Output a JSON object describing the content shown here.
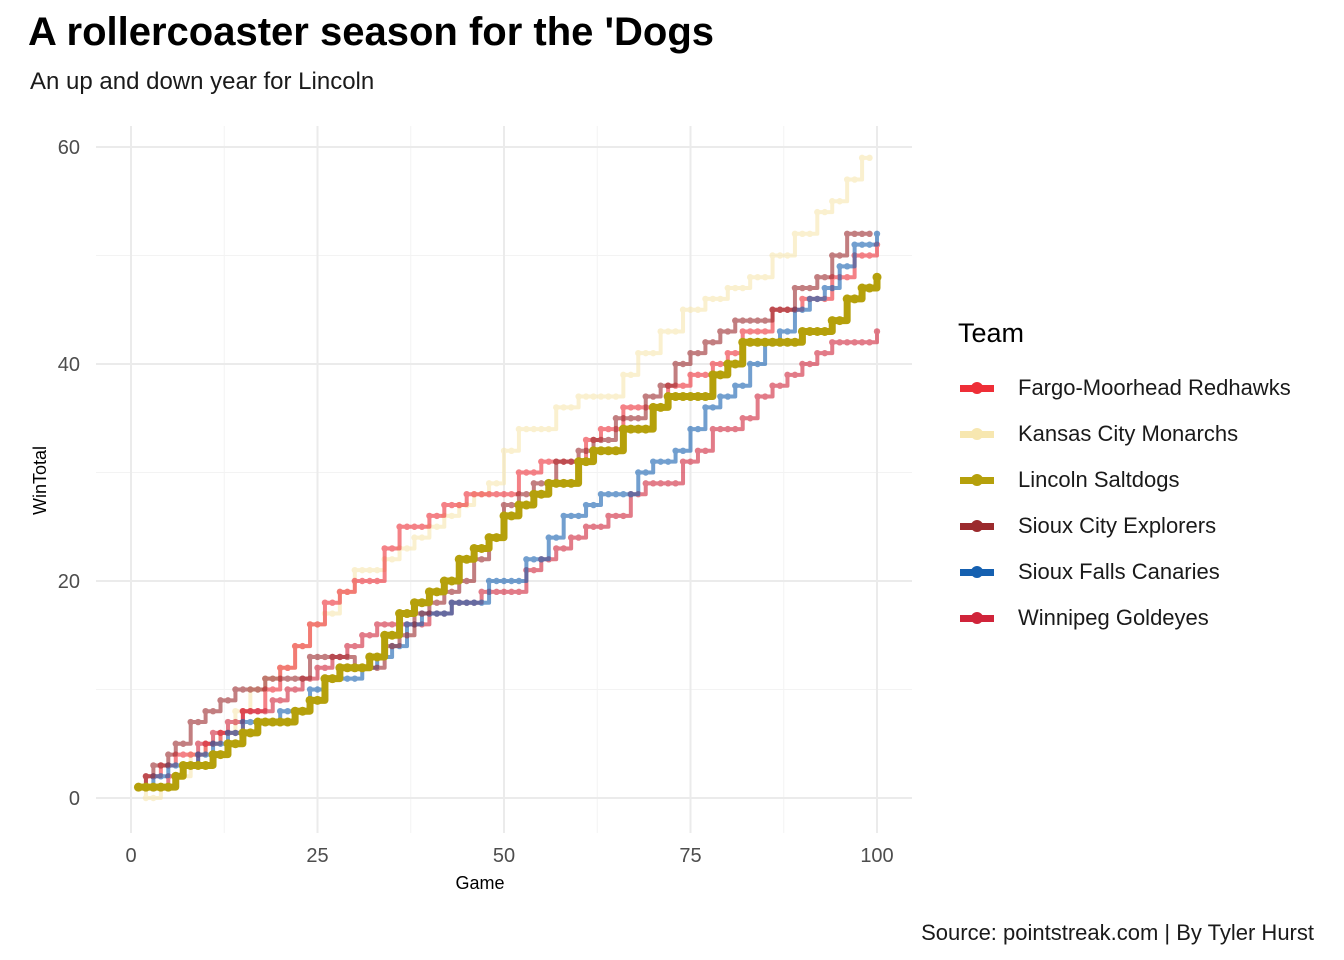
{
  "title": "A rollercoaster season for the 'Dogs",
  "subtitle": "An up and down year for Lincoln",
  "caption": "Source: pointstreak.com | By Tyler Hurst",
  "legend": {
    "title": "Team",
    "items": [
      {
        "label": "Fargo-Moorhead Redhawks",
        "color": "#EE2E37"
      },
      {
        "label": "Kansas City Monarchs",
        "color": "#F7E7B0"
      },
      {
        "label": "Lincoln Saltdogs",
        "color": "#B5A00B"
      },
      {
        "label": "Sioux City Explorers",
        "color": "#9B2A2D"
      },
      {
        "label": "Sioux Falls Canaries",
        "color": "#1560B0"
      },
      {
        "label": "Winnipeg Goldeyes",
        "color": "#D0243A"
      }
    ]
  },
  "chart_data": {
    "type": "line",
    "xlabel": "Game",
    "ylabel": "WinTotal",
    "xlim": [
      0,
      100
    ],
    "ylim": [
      0,
      60
    ],
    "x_ticks": [
      0,
      25,
      50,
      75,
      100
    ],
    "y_ticks": [
      0,
      20,
      40,
      60
    ],
    "grid": true,
    "legend_position": "right",
    "series": [
      {
        "name": "Fargo-Moorhead Redhawks",
        "color": "#EE2E37",
        "points": [
          [
            1,
            1
          ],
          [
            2,
            2
          ],
          [
            3,
            2
          ],
          [
            4,
            3
          ],
          [
            5,
            3
          ],
          [
            6,
            4
          ],
          [
            8,
            4
          ],
          [
            10,
            5
          ],
          [
            12,
            6
          ],
          [
            15,
            8
          ],
          [
            18,
            10
          ],
          [
            20,
            12
          ],
          [
            22,
            14
          ],
          [
            24,
            16
          ],
          [
            26,
            18
          ],
          [
            28,
            19
          ],
          [
            30,
            20
          ],
          [
            32,
            20
          ],
          [
            34,
            23
          ],
          [
            36,
            25
          ],
          [
            38,
            25
          ],
          [
            40,
            26
          ],
          [
            42,
            27
          ],
          [
            45,
            28
          ],
          [
            49,
            28
          ],
          [
            52,
            30
          ],
          [
            55,
            31
          ],
          [
            58,
            31
          ],
          [
            61,
            33
          ],
          [
            63,
            34
          ],
          [
            66,
            36
          ],
          [
            70,
            36
          ],
          [
            72,
            38
          ],
          [
            75,
            39
          ],
          [
            78,
            40
          ],
          [
            80,
            41
          ],
          [
            82,
            43
          ],
          [
            86,
            45
          ],
          [
            90,
            46
          ],
          [
            94,
            48
          ],
          [
            97,
            50
          ],
          [
            100,
            51
          ]
        ]
      },
      {
        "name": "Kansas City Monarchs",
        "color": "#F7E7B0",
        "points": [
          [
            1,
            1
          ],
          [
            2,
            0
          ],
          [
            3,
            0
          ],
          [
            4,
            1
          ],
          [
            6,
            2
          ],
          [
            8,
            4
          ],
          [
            10,
            5
          ],
          [
            12,
            6
          ],
          [
            14,
            8
          ],
          [
            16,
            10
          ],
          [
            18,
            11
          ],
          [
            20,
            12
          ],
          [
            22,
            14
          ],
          [
            24,
            16
          ],
          [
            26,
            17
          ],
          [
            28,
            19
          ],
          [
            30,
            21
          ],
          [
            32,
            21
          ],
          [
            34,
            22
          ],
          [
            36,
            23
          ],
          [
            38,
            24
          ],
          [
            40,
            25
          ],
          [
            42,
            26
          ],
          [
            44,
            27
          ],
          [
            46,
            28
          ],
          [
            48,
            29
          ],
          [
            50,
            32
          ],
          [
            52,
            34
          ],
          [
            55,
            34
          ],
          [
            57,
            36
          ],
          [
            60,
            37
          ],
          [
            64,
            37
          ],
          [
            66,
            39
          ],
          [
            68,
            41
          ],
          [
            71,
            43
          ],
          [
            74,
            45
          ],
          [
            77,
            46
          ],
          [
            80,
            47
          ],
          [
            83,
            48
          ],
          [
            86,
            50
          ],
          [
            89,
            52
          ],
          [
            92,
            54
          ],
          [
            94,
            55
          ],
          [
            96,
            57
          ],
          [
            98,
            59
          ],
          [
            99,
            59
          ]
        ]
      },
      {
        "name": "Lincoln Saltdogs",
        "color": "#B5A00B",
        "points": [
          [
            1,
            1
          ],
          [
            3,
            1
          ],
          [
            5,
            1
          ],
          [
            6,
            2
          ],
          [
            7,
            3
          ],
          [
            9,
            3
          ],
          [
            11,
            4
          ],
          [
            13,
            5
          ],
          [
            15,
            6
          ],
          [
            17,
            7
          ],
          [
            20,
            7
          ],
          [
            22,
            8
          ],
          [
            24,
            9
          ],
          [
            26,
            11
          ],
          [
            28,
            12
          ],
          [
            30,
            12
          ],
          [
            32,
            13
          ],
          [
            34,
            15
          ],
          [
            36,
            17
          ],
          [
            38,
            18
          ],
          [
            40,
            19
          ],
          [
            42,
            20
          ],
          [
            44,
            22
          ],
          [
            46,
            23
          ],
          [
            48,
            24
          ],
          [
            50,
            26
          ],
          [
            52,
            27
          ],
          [
            54,
            28
          ],
          [
            56,
            29
          ],
          [
            58,
            29
          ],
          [
            60,
            31
          ],
          [
            62,
            32
          ],
          [
            64,
            32
          ],
          [
            66,
            34
          ],
          [
            68,
            34
          ],
          [
            70,
            36
          ],
          [
            72,
            37
          ],
          [
            74,
            37
          ],
          [
            76,
            37
          ],
          [
            78,
            39
          ],
          [
            80,
            40
          ],
          [
            82,
            42
          ],
          [
            84,
            42
          ],
          [
            86,
            42
          ],
          [
            88,
            42
          ],
          [
            90,
            43
          ],
          [
            92,
            43
          ],
          [
            94,
            44
          ],
          [
            96,
            46
          ],
          [
            98,
            47
          ],
          [
            100,
            48
          ]
        ]
      },
      {
        "name": "Sioux City Explorers",
        "color": "#9B2A2D",
        "points": [
          [
            1,
            1
          ],
          [
            2,
            2
          ],
          [
            3,
            3
          ],
          [
            5,
            4
          ],
          [
            6,
            5
          ],
          [
            8,
            7
          ],
          [
            10,
            8
          ],
          [
            12,
            9
          ],
          [
            14,
            10
          ],
          [
            17,
            10
          ],
          [
            18,
            11
          ],
          [
            21,
            11
          ],
          [
            24,
            13
          ],
          [
            28,
            13
          ],
          [
            30,
            12
          ],
          [
            32,
            12
          ],
          [
            34,
            14
          ],
          [
            36,
            15
          ],
          [
            38,
            17
          ],
          [
            40,
            18
          ],
          [
            42,
            19
          ],
          [
            44,
            20
          ],
          [
            46,
            22
          ],
          [
            48,
            24
          ],
          [
            50,
            27
          ],
          [
            52,
            28
          ],
          [
            54,
            29
          ],
          [
            57,
            31
          ],
          [
            60,
            32
          ],
          [
            62,
            33
          ],
          [
            65,
            35
          ],
          [
            67,
            35
          ],
          [
            69,
            37
          ],
          [
            71,
            38
          ],
          [
            73,
            40
          ],
          [
            75,
            41
          ],
          [
            77,
            42
          ],
          [
            79,
            43
          ],
          [
            81,
            44
          ],
          [
            84,
            44
          ],
          [
            86,
            45
          ],
          [
            89,
            47
          ],
          [
            92,
            48
          ],
          [
            94,
            50
          ],
          [
            96,
            52
          ],
          [
            99,
            52
          ]
        ]
      },
      {
        "name": "Sioux Falls Canaries",
        "color": "#1560B0",
        "points": [
          [
            1,
            1
          ],
          [
            3,
            2
          ],
          [
            5,
            3
          ],
          [
            7,
            3
          ],
          [
            9,
            4
          ],
          [
            11,
            5
          ],
          [
            13,
            6
          ],
          [
            15,
            7
          ],
          [
            17,
            7
          ],
          [
            20,
            8
          ],
          [
            22,
            8
          ],
          [
            24,
            10
          ],
          [
            26,
            11
          ],
          [
            29,
            11
          ],
          [
            31,
            12
          ],
          [
            33,
            13
          ],
          [
            35,
            14
          ],
          [
            37,
            16
          ],
          [
            39,
            17
          ],
          [
            41,
            17
          ],
          [
            43,
            18
          ],
          [
            46,
            18
          ],
          [
            48,
            20
          ],
          [
            51,
            20
          ],
          [
            53,
            22
          ],
          [
            56,
            24
          ],
          [
            58,
            26
          ],
          [
            61,
            27
          ],
          [
            63,
            28
          ],
          [
            66,
            28
          ],
          [
            68,
            30
          ],
          [
            70,
            31
          ],
          [
            73,
            32
          ],
          [
            75,
            34
          ],
          [
            77,
            36
          ],
          [
            79,
            37
          ],
          [
            81,
            38
          ],
          [
            83,
            40
          ],
          [
            85,
            42
          ],
          [
            87,
            43
          ],
          [
            89,
            45
          ],
          [
            91,
            46
          ],
          [
            93,
            47
          ],
          [
            95,
            49
          ],
          [
            97,
            51
          ],
          [
            100,
            52
          ]
        ]
      },
      {
        "name": "Winnipeg Goldeyes",
        "color": "#D0243A",
        "points": [
          [
            1,
            1
          ],
          [
            3,
            1
          ],
          [
            5,
            2
          ],
          [
            7,
            3
          ],
          [
            9,
            5
          ],
          [
            11,
            6
          ],
          [
            13,
            7
          ],
          [
            15,
            8
          ],
          [
            17,
            8
          ],
          [
            19,
            9
          ],
          [
            21,
            10
          ],
          [
            23,
            11
          ],
          [
            25,
            12
          ],
          [
            27,
            13
          ],
          [
            29,
            14
          ],
          [
            31,
            15
          ],
          [
            33,
            16
          ],
          [
            35,
            16
          ],
          [
            38,
            16
          ],
          [
            40,
            17
          ],
          [
            43,
            18
          ],
          [
            45,
            18
          ],
          [
            47,
            19
          ],
          [
            51,
            19
          ],
          [
            53,
            21
          ],
          [
            55,
            22
          ],
          [
            57,
            23
          ],
          [
            59,
            24
          ],
          [
            61,
            25
          ],
          [
            64,
            26
          ],
          [
            67,
            28
          ],
          [
            69,
            29
          ],
          [
            72,
            29
          ],
          [
            74,
            31
          ],
          [
            76,
            32
          ],
          [
            78,
            34
          ],
          [
            80,
            34
          ],
          [
            82,
            35
          ],
          [
            84,
            37
          ],
          [
            86,
            38
          ],
          [
            88,
            39
          ],
          [
            90,
            40
          ],
          [
            92,
            41
          ],
          [
            94,
            42
          ],
          [
            98,
            42
          ],
          [
            100,
            43
          ]
        ]
      }
    ]
  }
}
